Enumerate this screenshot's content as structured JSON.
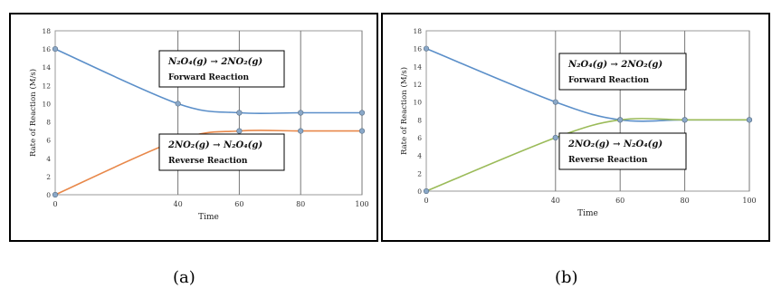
{
  "chart_data": [
    {
      "type": "line",
      "panel_label": "(a)",
      "xlabel": "Time",
      "ylabel": "Rate of Reaction (M/s)",
      "xlim": [
        0,
        100
      ],
      "ylim": [
        0,
        18
      ],
      "xticks": [
        0,
        40,
        60,
        80,
        100
      ],
      "yticks": [
        0,
        2,
        4,
        6,
        8,
        10,
        12,
        14,
        16,
        18
      ],
      "series": [
        {
          "color": "#5b8fc9",
          "x": [
            0,
            40,
            60,
            80,
            100
          ],
          "y": [
            16,
            10,
            9,
            9,
            9
          ]
        },
        {
          "color": "#e8884a",
          "x": [
            0,
            40,
            60,
            80,
            100
          ],
          "y": [
            0,
            6,
            7,
            7,
            7
          ]
        }
      ],
      "annotations": {
        "forward_equation": "N₂O₄(g) → 2NO₂(g)",
        "forward_label": "Forward Reaction",
        "reverse_equation": "2NO₂(g) → N₂O₄(g)",
        "reverse_label": "Reverse Reaction"
      }
    },
    {
      "type": "line",
      "panel_label": "(b)",
      "xlabel": "Time",
      "ylabel": "Rate of Reaction (M/s)",
      "xlim": [
        0,
        100
      ],
      "ylim": [
        0,
        18
      ],
      "xticks": [
        0,
        40,
        60,
        80,
        100
      ],
      "yticks": [
        0,
        2,
        4,
        6,
        8,
        10,
        12,
        14,
        16,
        18
      ],
      "series": [
        {
          "color": "#5b8fc9",
          "x": [
            0,
            40,
            60,
            80,
            100
          ],
          "y": [
            16,
            10,
            8,
            8,
            8
          ]
        },
        {
          "color": "#9bbb59",
          "x": [
            0,
            40,
            60,
            80,
            100
          ],
          "y": [
            0,
            6,
            8,
            8,
            8
          ]
        }
      ],
      "annotations": {
        "forward_equation": "N₂O₄(g) → 2NO₂(g)",
        "forward_label": "Forward Reaction",
        "reverse_equation": "2NO₂(g) → N₂O₄(g)",
        "reverse_label": "Reverse Reaction"
      }
    }
  ]
}
